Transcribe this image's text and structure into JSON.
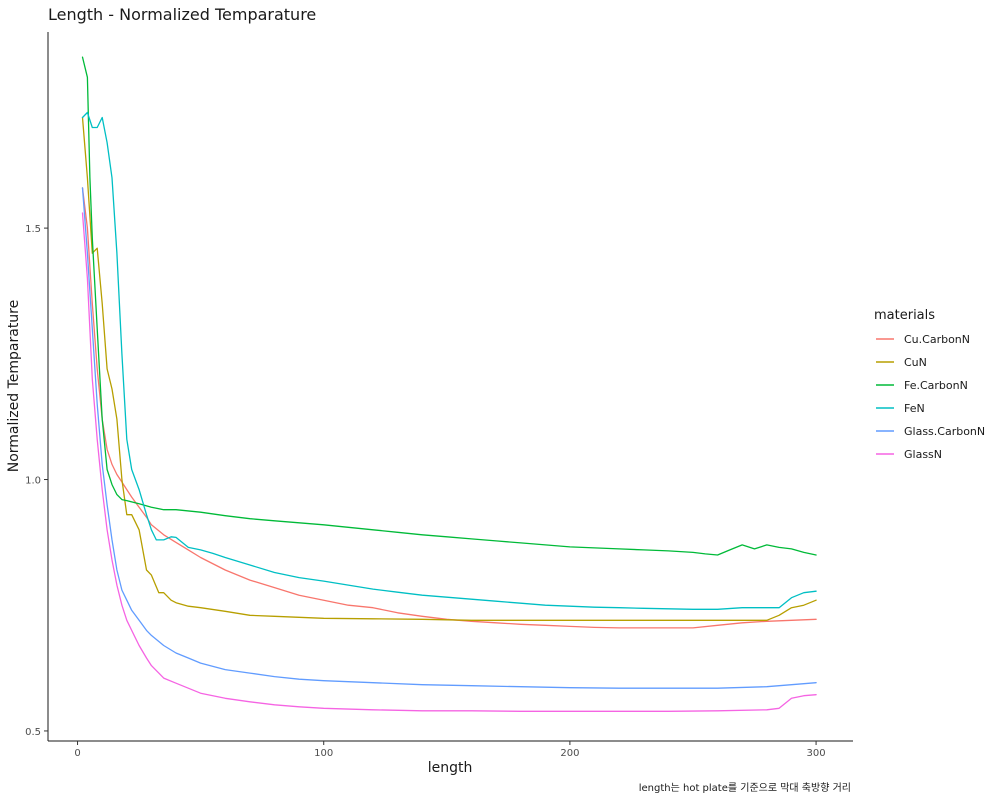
{
  "chart_data": {
    "type": "line",
    "title": "Length - Normalized Temparature",
    "xlabel": "length",
    "ylabel": "Normalized Temparature",
    "caption": "length는 hot plate를 기준으로 막대 축방향 거리",
    "xlim": [
      -12,
      315
    ],
    "ylim": [
      0.48,
      1.89
    ],
    "x_ticks": [
      0,
      100,
      200,
      300
    ],
    "x_tick_labels": [
      "0",
      "100",
      "200",
      "300"
    ],
    "y_ticks": [
      0.5,
      1.0,
      1.5
    ],
    "y_tick_labels": [
      "0.5",
      "1.0",
      "1.5"
    ],
    "grid": false,
    "legend": {
      "title": "materials",
      "position": "right"
    },
    "series": [
      {
        "name": "Cu.CarbonN",
        "color": "#F8766D",
        "x": [
          2,
          4,
          6,
          8,
          10,
          12,
          14,
          16,
          18,
          20,
          22,
          25,
          28,
          30,
          35,
          40,
          45,
          50,
          60,
          70,
          80,
          90,
          100,
          110,
          120,
          130,
          140,
          150,
          160,
          170,
          180,
          190,
          200,
          210,
          220,
          230,
          240,
          250,
          260,
          270,
          280,
          290,
          300
        ],
        "y": [
          1.58,
          1.5,
          1.35,
          1.22,
          1.12,
          1.06,
          1.03,
          1.01,
          0.995,
          0.98,
          0.965,
          0.945,
          0.925,
          0.91,
          0.89,
          0.875,
          0.86,
          0.845,
          0.82,
          0.8,
          0.785,
          0.77,
          0.76,
          0.75,
          0.745,
          0.735,
          0.728,
          0.722,
          0.718,
          0.715,
          0.712,
          0.71,
          0.708,
          0.706,
          0.705,
          0.705,
          0.705,
          0.705,
          0.71,
          0.715,
          0.718,
          0.72,
          0.722
        ]
      },
      {
        "name": "CuN",
        "color": "#B79F00",
        "x": [
          2,
          4,
          6,
          8,
          10,
          12,
          14,
          16,
          18,
          20,
          22,
          25,
          28,
          30,
          33,
          35,
          38,
          40,
          45,
          50,
          60,
          70,
          80,
          90,
          100,
          120,
          140,
          160,
          180,
          200,
          220,
          240,
          260,
          280,
          285,
          290,
          295,
          300
        ],
        "y": [
          1.72,
          1.6,
          1.45,
          1.46,
          1.35,
          1.22,
          1.18,
          1.12,
          1.0,
          0.93,
          0.93,
          0.9,
          0.82,
          0.81,
          0.775,
          0.775,
          0.76,
          0.755,
          0.748,
          0.745,
          0.738,
          0.73,
          0.728,
          0.726,
          0.724,
          0.723,
          0.722,
          0.72,
          0.72,
          0.72,
          0.72,
          0.72,
          0.72,
          0.72,
          0.73,
          0.745,
          0.75,
          0.76
        ]
      },
      {
        "name": "Fe.CarbonN",
        "color": "#00BA38",
        "x": [
          2,
          4,
          5,
          6,
          8,
          10,
          12,
          14,
          16,
          18,
          20,
          25,
          30,
          35,
          40,
          50,
          60,
          70,
          80,
          90,
          100,
          110,
          120,
          130,
          140,
          150,
          160,
          170,
          180,
          190,
          200,
          210,
          220,
          230,
          240,
          250,
          255,
          260,
          265,
          270,
          275,
          280,
          285,
          290,
          295,
          300
        ],
        "y": [
          1.84,
          1.8,
          1.6,
          1.48,
          1.3,
          1.12,
          1.02,
          0.99,
          0.97,
          0.96,
          0.958,
          0.952,
          0.945,
          0.94,
          0.94,
          0.935,
          0.928,
          0.922,
          0.918,
          0.914,
          0.91,
          0.905,
          0.9,
          0.895,
          0.89,
          0.886,
          0.882,
          0.878,
          0.874,
          0.87,
          0.866,
          0.864,
          0.862,
          0.86,
          0.858,
          0.855,
          0.852,
          0.85,
          0.86,
          0.87,
          0.862,
          0.87,
          0.865,
          0.862,
          0.855,
          0.85
        ]
      },
      {
        "name": "FeN",
        "color": "#00BFC4",
        "x": [
          2,
          4,
          6,
          8,
          10,
          12,
          14,
          16,
          18,
          20,
          22,
          25,
          28,
          30,
          32,
          35,
          38,
          40,
          45,
          50,
          55,
          60,
          70,
          80,
          90,
          100,
          110,
          120,
          130,
          140,
          150,
          160,
          170,
          180,
          190,
          200,
          210,
          220,
          230,
          240,
          250,
          260,
          270,
          280,
          285,
          290,
          295,
          300
        ],
        "y": [
          1.72,
          1.73,
          1.7,
          1.7,
          1.72,
          1.67,
          1.6,
          1.45,
          1.25,
          1.08,
          1.02,
          0.98,
          0.93,
          0.9,
          0.88,
          0.88,
          0.886,
          0.885,
          0.865,
          0.86,
          0.853,
          0.845,
          0.83,
          0.815,
          0.805,
          0.798,
          0.79,
          0.782,
          0.776,
          0.77,
          0.766,
          0.762,
          0.758,
          0.754,
          0.75,
          0.748,
          0.746,
          0.745,
          0.744,
          0.743,
          0.742,
          0.742,
          0.745,
          0.745,
          0.745,
          0.765,
          0.775,
          0.778
        ]
      },
      {
        "name": "Glass.CarbonN",
        "color": "#619CFF",
        "x": [
          2,
          4,
          6,
          8,
          10,
          12,
          14,
          16,
          18,
          20,
          22,
          25,
          28,
          30,
          35,
          40,
          45,
          50,
          60,
          70,
          80,
          90,
          100,
          120,
          140,
          160,
          180,
          200,
          220,
          240,
          260,
          280,
          290,
          300
        ],
        "y": [
          1.58,
          1.45,
          1.3,
          1.15,
          1.03,
          0.95,
          0.88,
          0.82,
          0.78,
          0.76,
          0.74,
          0.72,
          0.7,
          0.69,
          0.67,
          0.655,
          0.645,
          0.635,
          0.622,
          0.615,
          0.608,
          0.603,
          0.6,
          0.596,
          0.592,
          0.59,
          0.588,
          0.586,
          0.585,
          0.585,
          0.585,
          0.588,
          0.592,
          0.596
        ]
      },
      {
        "name": "GlassN",
        "color": "#F564E3",
        "x": [
          2,
          4,
          6,
          8,
          10,
          12,
          14,
          16,
          18,
          20,
          22,
          25,
          28,
          30,
          35,
          40,
          45,
          50,
          60,
          70,
          80,
          90,
          100,
          120,
          140,
          160,
          180,
          200,
          220,
          240,
          260,
          280,
          285,
          290,
          295,
          300
        ],
        "y": [
          1.53,
          1.4,
          1.2,
          1.08,
          0.98,
          0.9,
          0.84,
          0.79,
          0.75,
          0.72,
          0.7,
          0.67,
          0.645,
          0.63,
          0.605,
          0.595,
          0.585,
          0.575,
          0.565,
          0.558,
          0.552,
          0.548,
          0.545,
          0.542,
          0.54,
          0.54,
          0.539,
          0.539,
          0.539,
          0.539,
          0.54,
          0.542,
          0.545,
          0.565,
          0.57,
          0.572
        ]
      }
    ]
  }
}
